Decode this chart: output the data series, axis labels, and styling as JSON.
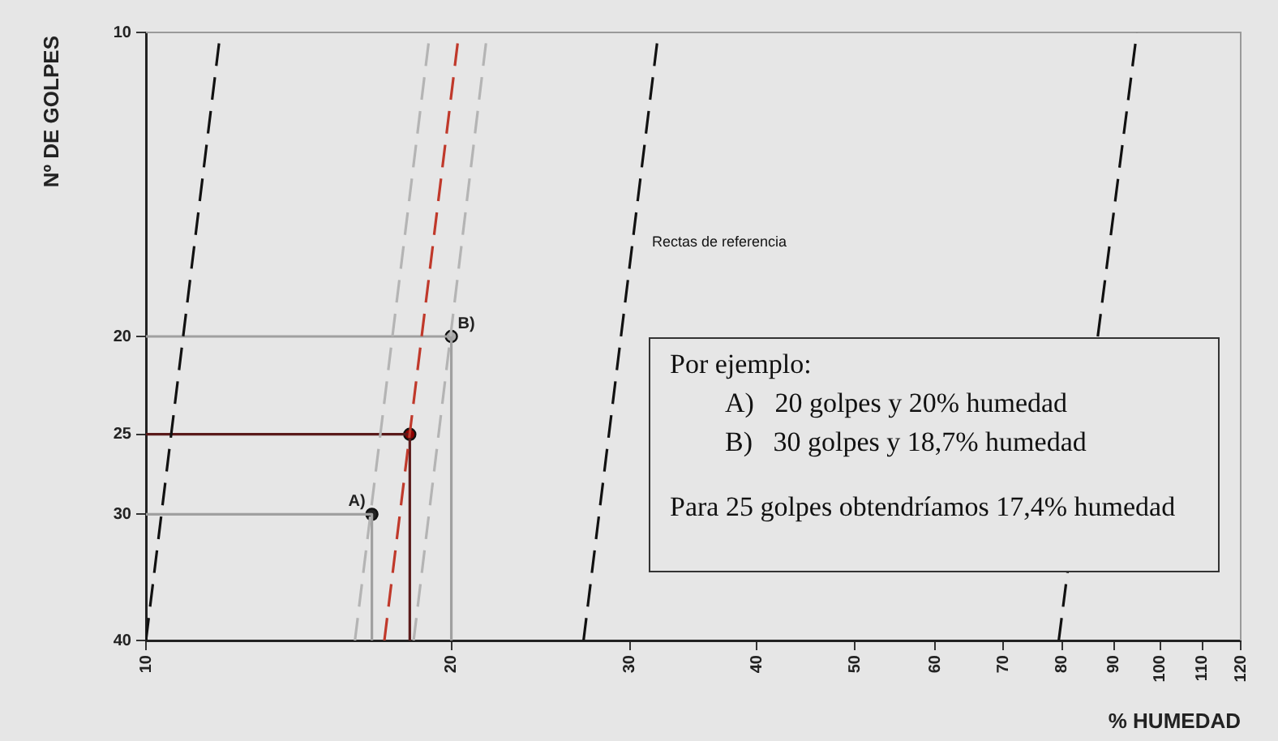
{
  "chart_data": {
    "type": "line",
    "xlabel": "% HUMEDAD",
    "ylabel": "Nº DE GOLPES",
    "log": "xy",
    "grid": false,
    "legend": false,
    "xlim": [
      10,
      120
    ],
    "xticks": [
      10,
      20,
      30,
      40,
      50,
      60,
      70,
      80,
      90,
      100,
      110,
      120
    ],
    "ylim": [
      40,
      10
    ],
    "yticks": [
      10,
      20,
      25,
      30,
      40
    ],
    "series": [
      {
        "type": "line",
        "color": "#111111",
        "line_style": "dashed",
        "marker": "none",
        "x": [
          10,
          11.84
        ],
        "values": [
          40,
          10
        ]
      },
      {
        "type": "line",
        "color": "#b4b4b4",
        "line_style": "dashed",
        "marker": "none",
        "x": [
          16.07,
          19.05
        ],
        "values": [
          40,
          10
        ]
      },
      {
        "type": "line",
        "color": "#c0392b",
        "line_style": "dashed",
        "marker": "none",
        "x": [
          17.18,
          20.35
        ],
        "values": [
          40,
          10
        ]
      },
      {
        "type": "line",
        "color": "#b4b4b4",
        "line_style": "dashed",
        "marker": "none",
        "x": [
          18.36,
          21.7
        ],
        "values": [
          40,
          10
        ]
      },
      {
        "type": "line",
        "color": "#111111",
        "line_style": "dashed",
        "marker": "none",
        "x": [
          27.0,
          32.0
        ],
        "values": [
          40,
          10
        ]
      },
      {
        "type": "line",
        "color": "#111111",
        "line_style": "dashed",
        "marker": "none",
        "x": [
          79.4,
          94.8
        ],
        "values": [
          40,
          10
        ]
      },
      {
        "type": "line",
        "color": "#a0a0a0",
        "line_style": "solid",
        "marker": "none",
        "x": [
          10,
          20,
          20
        ],
        "values": [
          20,
          20,
          40
        ]
      },
      {
        "type": "line",
        "color": "#a0a0a0",
        "line_style": "solid",
        "marker": "none",
        "x": [
          10,
          16.7,
          16.7
        ],
        "values": [
          30,
          30,
          40
        ]
      },
      {
        "type": "line",
        "color": "#5a1a1a",
        "line_style": "solid",
        "marker": "none",
        "x": [
          10,
          18.2,
          18.2
        ],
        "values": [
          25,
          25,
          40
        ]
      },
      {
        "type": "scatter",
        "color": "#222222",
        "marker": "circle",
        "x": [
          16.7
        ],
        "values": [
          30
        ]
      },
      {
        "type": "scatter",
        "color": "#a8a8a8",
        "marker": "circle",
        "x": [
          20
        ],
        "values": [
          20
        ]
      },
      {
        "type": "scatter",
        "color": "#8b0000",
        "marker": "circle",
        "x": [
          18.2
        ],
        "values": [
          25
        ]
      }
    ],
    "annotations": [
      "Rectas de referencia",
      "Por ejemplo:",
      "A)   20 golpes y 20% humedad",
      "B)   30 golpes y 18,7% humedad",
      "Para 25 golpes obtendríamos 17,4% humedad",
      {
        "text": "A)",
        "x": 16.7,
        "y": 30
      },
      {
        "text": "B)",
        "x": 20,
        "y": 20
      }
    ]
  }
}
